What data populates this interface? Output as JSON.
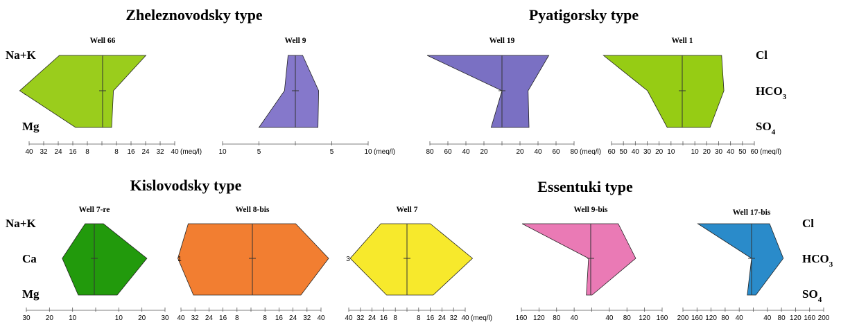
{
  "chart_data": {
    "type": "stiff-diagram",
    "groups": [
      {
        "title": "Zheleznovodsky type",
        "wells": [
          "Well 66",
          "Well 9"
        ]
      },
      {
        "title": "Pyatigorsky type",
        "wells": [
          "Well 19",
          "Well 1"
        ]
      },
      {
        "title": "Kislovodsky type",
        "wells": [
          "Well 7-re",
          "Well 8-bis",
          "Well 7"
        ]
      },
      {
        "title": "Essentuki type",
        "wells": [
          "Well 9-bis",
          "Well 17-bis"
        ]
      }
    ],
    "left_labels": [
      "Na+K",
      "Ca",
      "Mg"
    ],
    "right_labels": [
      "Cl",
      "HCO3",
      "SO4"
    ],
    "right_label_parts": [
      {
        "base": "Cl",
        "sub": ""
      },
      {
        "base": "HCO",
        "sub": "3"
      },
      {
        "base": "SO",
        "sub": "4"
      }
    ],
    "unit": "(meq/l)",
    "wells": [
      {
        "name": "Well 66",
        "color": "#9acd1c",
        "cations": [
          24,
          46,
          15
        ],
        "anions": [
          24,
          6,
          5
        ]
      },
      {
        "name": "Well 9",
        "color": "#8578cb",
        "cations": [
          1,
          1.5,
          5
        ],
        "anions": [
          1,
          3.2,
          3.1
        ]
      },
      {
        "name": "Well 19",
        "color": "#7a70c3",
        "cations": [
          83,
          0,
          12
        ],
        "anions": [
          52,
          29,
          30
        ]
      },
      {
        "name": "Well 1",
        "color": "#96cc14",
        "cations": [
          68,
          30,
          13
        ],
        "anions": [
          34,
          36,
          24
        ]
      },
      {
        "name": "Well 7-re",
        "color": "#229a0c",
        "cations": [
          4,
          14,
          7
        ],
        "anions": [
          4,
          23,
          10
        ]
      },
      {
        "name": "Well 8-bis",
        "color": "#f27e31",
        "cations": [
          37,
          43,
          34
        ],
        "anions": [
          25,
          44,
          28
        ]
      },
      {
        "name": "Well 7",
        "color": "#f7e92c",
        "cations": [
          18,
          39,
          14
        ],
        "anions": [
          16,
          45,
          18
        ]
      },
      {
        "name": "Well 9-bis",
        "color": "#ea7ab5",
        "cations": [
          157,
          5,
          10
        ],
        "anions": [
          63,
          103,
          3
        ]
      },
      {
        "name": "Well 17-bis",
        "color": "#2a8bca",
        "cations": [
          149,
          0,
          12
        ],
        "anions": [
          50,
          88,
          12
        ]
      }
    ],
    "axes": [
      {
        "ticks": [
          "40",
          "32",
          "24",
          "16",
          "8",
          "8",
          "16",
          "24",
          "32",
          "40"
        ],
        "unit": "(meq/l)"
      },
      {
        "ticks": [
          "10",
          "5",
          "5",
          "10"
        ],
        "unit": "(meq/l)"
      },
      {
        "ticks": [
          "80",
          "60",
          "40",
          "20",
          "20",
          "40",
          "60",
          "80"
        ],
        "unit": "(meq/l)"
      },
      {
        "ticks": [
          "60",
          "50",
          "40",
          "30",
          "20",
          "10",
          "10",
          "20",
          "30",
          "40",
          "50",
          "60"
        ],
        "unit": "(meq/l)"
      },
      {
        "ticks": [
          "30",
          "20",
          "10",
          "10",
          "20",
          "30"
        ],
        "unit": ""
      },
      {
        "ticks": [
          "40",
          "32",
          "24",
          "16",
          "8",
          "8",
          "16",
          "24",
          "32",
          "40"
        ],
        "unit": ""
      },
      {
        "ticks": [
          "40",
          "32",
          "24",
          "16",
          "8",
          "8",
          "16",
          "24",
          "32",
          "40"
        ],
        "unit": "(meq/l)"
      },
      {
        "ticks": [
          "160",
          "120",
          "80",
          "40",
          "40",
          "80",
          "120",
          "160"
        ],
        "unit": ""
      },
      {
        "ticks": [
          "200",
          "160",
          "120",
          "80",
          "40",
          "40",
          "80",
          "120",
          "160",
          "200"
        ],
        "unit": ""
      }
    ],
    "edge_marks": [
      "1",
      "3"
    ]
  }
}
